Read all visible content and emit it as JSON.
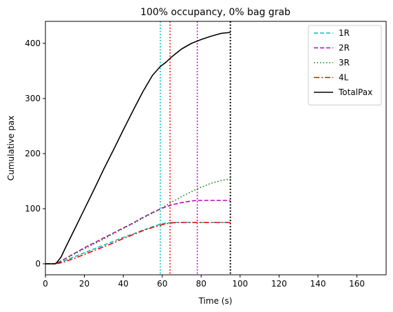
{
  "chart_data": {
    "type": "line",
    "title": "100% occupancy, 0% bag grab",
    "xlabel": "Time (s)",
    "ylabel": "Cumulative pax",
    "xlim": [
      0,
      175
    ],
    "ylim": [
      -20,
      440
    ],
    "xticks": [
      0,
      20,
      40,
      60,
      80,
      100,
      120,
      140,
      160
    ],
    "yticks": [
      0,
      100,
      200,
      300,
      400
    ],
    "grid": false,
    "legend_position": "top-right",
    "series": [
      {
        "name": "1R",
        "color": "#00bfbf",
        "dash": "dashed",
        "points": [
          [
            0,
            0
          ],
          [
            5,
            0
          ],
          [
            7,
            2
          ],
          [
            10,
            6
          ],
          [
            15,
            13
          ],
          [
            20,
            20
          ],
          [
            25,
            27
          ],
          [
            30,
            34
          ],
          [
            35,
            41
          ],
          [
            40,
            48
          ],
          [
            45,
            54
          ],
          [
            50,
            61
          ],
          [
            55,
            67
          ],
          [
            59,
            72
          ],
          [
            62,
            74
          ],
          [
            65,
            75
          ],
          [
            70,
            75
          ],
          [
            80,
            75
          ],
          [
            90,
            75
          ],
          [
            95,
            75
          ]
        ]
      },
      {
        "name": "2R",
        "color": "#bf00bf",
        "dash": "dashed",
        "points": [
          [
            0,
            0
          ],
          [
            5,
            0
          ],
          [
            7,
            3
          ],
          [
            10,
            9
          ],
          [
            15,
            19
          ],
          [
            20,
            29
          ],
          [
            25,
            38
          ],
          [
            30,
            47
          ],
          [
            35,
            56
          ],
          [
            40,
            65
          ],
          [
            45,
            74
          ],
          [
            50,
            84
          ],
          [
            55,
            93
          ],
          [
            60,
            101
          ],
          [
            65,
            107
          ],
          [
            70,
            111
          ],
          [
            75,
            114
          ],
          [
            78,
            115
          ],
          [
            85,
            115
          ],
          [
            95,
            115
          ]
        ]
      },
      {
        "name": "3R",
        "color": "#008000",
        "dash": "dotted",
        "points": [
          [
            0,
            0
          ],
          [
            5,
            0
          ],
          [
            7,
            3
          ],
          [
            10,
            9
          ],
          [
            15,
            18
          ],
          [
            20,
            27
          ],
          [
            25,
            36
          ],
          [
            30,
            45
          ],
          [
            35,
            55
          ],
          [
            40,
            64
          ],
          [
            45,
            73
          ],
          [
            50,
            83
          ],
          [
            55,
            92
          ],
          [
            60,
            102
          ],
          [
            65,
            112
          ],
          [
            70,
            122
          ],
          [
            75,
            131
          ],
          [
            80,
            139
          ],
          [
            85,
            146
          ],
          [
            90,
            151
          ],
          [
            95,
            154
          ]
        ]
      },
      {
        "name": "4L",
        "color": "#ff0000",
        "dash": "dashdot",
        "points": [
          [
            0,
            0
          ],
          [
            5,
            0
          ],
          [
            7,
            1
          ],
          [
            10,
            4
          ],
          [
            15,
            10
          ],
          [
            20,
            17
          ],
          [
            25,
            24
          ],
          [
            30,
            31
          ],
          [
            35,
            38
          ],
          [
            40,
            46
          ],
          [
            45,
            53
          ],
          [
            50,
            60
          ],
          [
            55,
            66
          ],
          [
            60,
            71
          ],
          [
            64,
            74
          ],
          [
            68,
            75
          ],
          [
            75,
            75
          ],
          [
            85,
            75
          ],
          [
            95,
            75
          ]
        ]
      },
      {
        "name": "TotalPax",
        "color": "#000000",
        "dash": "solid",
        "points": [
          [
            0,
            0
          ],
          [
            5,
            0
          ],
          [
            6,
            3
          ],
          [
            8,
            12
          ],
          [
            10,
            27
          ],
          [
            15,
            63
          ],
          [
            20,
            99
          ],
          [
            25,
            135
          ],
          [
            30,
            172
          ],
          [
            35,
            207
          ],
          [
            40,
            243
          ],
          [
            45,
            278
          ],
          [
            50,
            312
          ],
          [
            55,
            342
          ],
          [
            59,
            358
          ],
          [
            62,
            366
          ],
          [
            65,
            376
          ],
          [
            70,
            390
          ],
          [
            75,
            400
          ],
          [
            80,
            407
          ],
          [
            85,
            413
          ],
          [
            90,
            418
          ],
          [
            95,
            420
          ]
        ]
      }
    ],
    "vlines": [
      {
        "x": 59,
        "color": "#00bfbf"
      },
      {
        "x": 64,
        "color": "#ff0000"
      },
      {
        "x": 78,
        "color": "#bf00bf"
      },
      {
        "x": 95,
        "color": "#000000"
      }
    ]
  }
}
